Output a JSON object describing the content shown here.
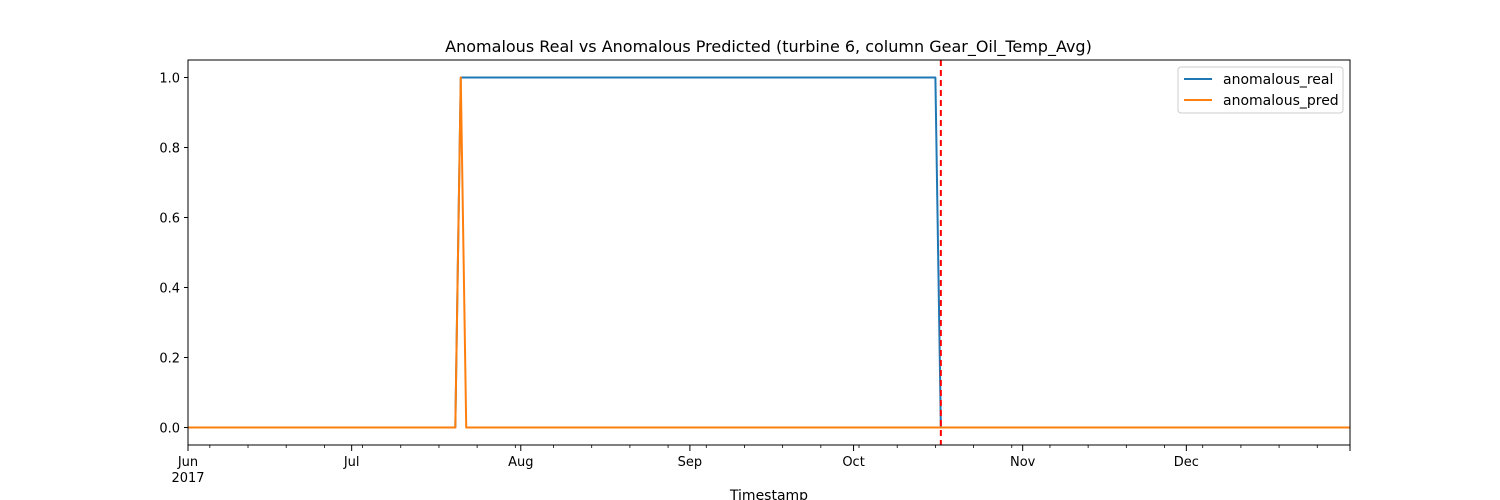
{
  "chart_data": {
    "type": "line",
    "title": "Anomalous Real vs Anomalous Predicted (turbine 6, column Gear_Oil_Temp_Avg)",
    "xlabel": "Timestamp",
    "ylabel": "",
    "xlim": [
      "2017-06-01",
      "2017-12-31"
    ],
    "ylim": [
      -0.05,
      1.05
    ],
    "yticks": [
      0.0,
      0.2,
      0.4,
      0.6,
      0.8,
      1.0
    ],
    "ytick_labels": [
      "0.0",
      "0.2",
      "0.4",
      "0.6",
      "0.8",
      "1.0"
    ],
    "xticks": [
      {
        "date": "2017-06-01",
        "label": "Jun",
        "sublabel": "2017"
      },
      {
        "date": "2017-07-01",
        "label": "Jul",
        "sublabel": ""
      },
      {
        "date": "2017-08-01",
        "label": "Aug",
        "sublabel": ""
      },
      {
        "date": "2017-09-01",
        "label": "Sep",
        "sublabel": ""
      },
      {
        "date": "2017-10-01",
        "label": "Oct",
        "sublabel": ""
      },
      {
        "date": "2017-11-01",
        "label": "Nov",
        "sublabel": ""
      },
      {
        "date": "2017-12-01",
        "label": "Dec",
        "sublabel": ""
      }
    ],
    "grid": false,
    "legend": "top-right",
    "vline": {
      "x": "2017-10-17",
      "color": "#ff0000",
      "style": "dashed"
    },
    "series": [
      {
        "name": "anomalous_real",
        "color": "#1f77b4",
        "x": [
          "2017-06-01",
          "2017-07-20",
          "2017-07-21",
          "2017-10-16",
          "2017-10-17",
          "2017-12-31"
        ],
        "y": [
          0,
          0,
          1,
          1,
          0,
          0
        ]
      },
      {
        "name": "anomalous_pred",
        "color": "#ff7f0e",
        "x": [
          "2017-06-01",
          "2017-07-20",
          "2017-07-21",
          "2017-07-22",
          "2017-12-31"
        ],
        "y": [
          0,
          0,
          1,
          0,
          0
        ]
      }
    ]
  }
}
